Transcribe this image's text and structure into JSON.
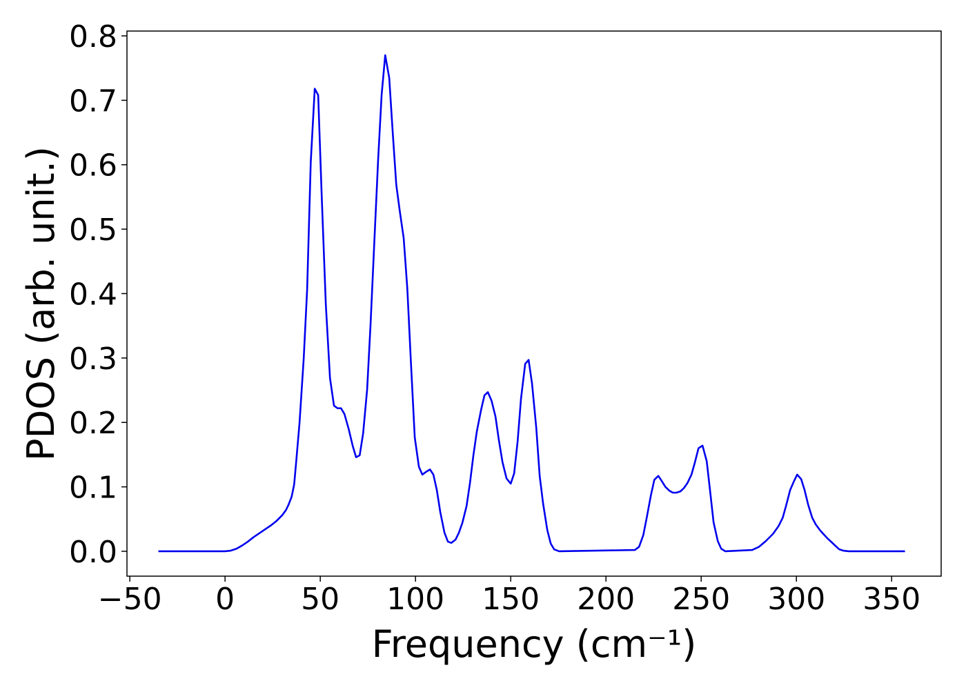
{
  "chart_data": {
    "type": "line",
    "xlabel": "Frequency (cm⁻¹)",
    "ylabel": "PDOS (arb. unit.)",
    "xlim": [
      -51.5,
      376
    ],
    "ylim": [
      -0.0386,
      0.8075
    ],
    "xticks": [
      {
        "value": -50,
        "label": "−50"
      },
      0,
      50,
      100,
      150,
      200,
      250,
      300,
      350
    ],
    "yticks": [
      {
        "value": 0,
        "label": "0.0"
      },
      0.1,
      0.2,
      0.3,
      0.4,
      0.5,
      0.6,
      0.7,
      0.8
    ],
    "grid": false,
    "series": [
      {
        "color": "#0000ee",
        "x": [
          -35,
          -10,
          0,
          3,
          6,
          9,
          12,
          15,
          18,
          21,
          24,
          27,
          30,
          32,
          33.3,
          35,
          36.3,
          37.3,
          39.1,
          41.3,
          43.1,
          45,
          47.1,
          48.9,
          50.7,
          52.9,
          55.1,
          57.2,
          59.1,
          60.9,
          62.7,
          64.9,
          67,
          68.8,
          70.7,
          72.5,
          74.6,
          76.4,
          78.3,
          80.4,
          82.2,
          84.1,
          86.2,
          88,
          89.9,
          91.7,
          93.8,
          95.7,
          97.5,
          99.6,
          101.8,
          103.6,
          105.4,
          107.6,
          109.4,
          111.2,
          113,
          115.2,
          117,
          118.8,
          121,
          122.8,
          124.6,
          126.8,
          128.6,
          130.4,
          132.2,
          134.4,
          136.2,
          138,
          139.9,
          142,
          143.8,
          145.7,
          147.8,
          150,
          151.8,
          153.6,
          155.4,
          157.6,
          159.4,
          161.2,
          163.4,
          165.2,
          167,
          169.2,
          171,
          172.8,
          175.4,
          215.2,
          217.4,
          219.6,
          221.4,
          223.6,
          225.4,
          227.5,
          229.3,
          231.2,
          233.3,
          235.1,
          237,
          239.1,
          240.9,
          242.8,
          244.9,
          246.7,
          248.6,
          250.7,
          252.9,
          254.7,
          256.5,
          258.7,
          260.5,
          262.7,
          276.8,
          280.4,
          284,
          287.7,
          290.6,
          292.8,
          294.6,
          296.7,
          298.6,
          300.4,
          302.5,
          304.3,
          306.2,
          308.3,
          310.1,
          312.3,
          314.1,
          316.3,
          318.5,
          320.3,
          322.5,
          324.6,
          327.5,
          357
        ],
        "values": [
          0,
          0,
          0,
          0.001,
          0.004,
          0.009,
          0.015,
          0.022,
          0.028,
          0.034,
          0.04,
          0.047,
          0.056,
          0.064,
          0.072,
          0.085,
          0.104,
          0.137,
          0.199,
          0.299,
          0.406,
          0.604,
          0.718,
          0.708,
          0.556,
          0.384,
          0.269,
          0.226,
          0.222,
          0.222,
          0.213,
          0.19,
          0.164,
          0.146,
          0.149,
          0.183,
          0.251,
          0.352,
          0.475,
          0.609,
          0.708,
          0.77,
          0.735,
          0.652,
          0.569,
          0.529,
          0.486,
          0.408,
          0.299,
          0.177,
          0.131,
          0.119,
          0.123,
          0.127,
          0.119,
          0.095,
          0.061,
          0.029,
          0.015,
          0.013,
          0.018,
          0.029,
          0.044,
          0.07,
          0.106,
          0.149,
          0.186,
          0.219,
          0.242,
          0.247,
          0.234,
          0.209,
          0.172,
          0.138,
          0.113,
          0.105,
          0.121,
          0.17,
          0.237,
          0.291,
          0.297,
          0.26,
          0.192,
          0.117,
          0.074,
          0.033,
          0.012,
          0.003,
          0,
          0.002,
          0.007,
          0.025,
          0.052,
          0.087,
          0.111,
          0.117,
          0.109,
          0.1,
          0.094,
          0.091,
          0.091,
          0.093,
          0.098,
          0.106,
          0.119,
          0.138,
          0.16,
          0.164,
          0.14,
          0.093,
          0.045,
          0.016,
          0.004,
          0,
          0.002,
          0.007,
          0.016,
          0.027,
          0.039,
          0.052,
          0.071,
          0.095,
          0.108,
          0.119,
          0.112,
          0.095,
          0.072,
          0.052,
          0.042,
          0.033,
          0.027,
          0.02,
          0.014,
          0.009,
          0.003,
          0.001,
          0,
          0
        ]
      }
    ]
  }
}
